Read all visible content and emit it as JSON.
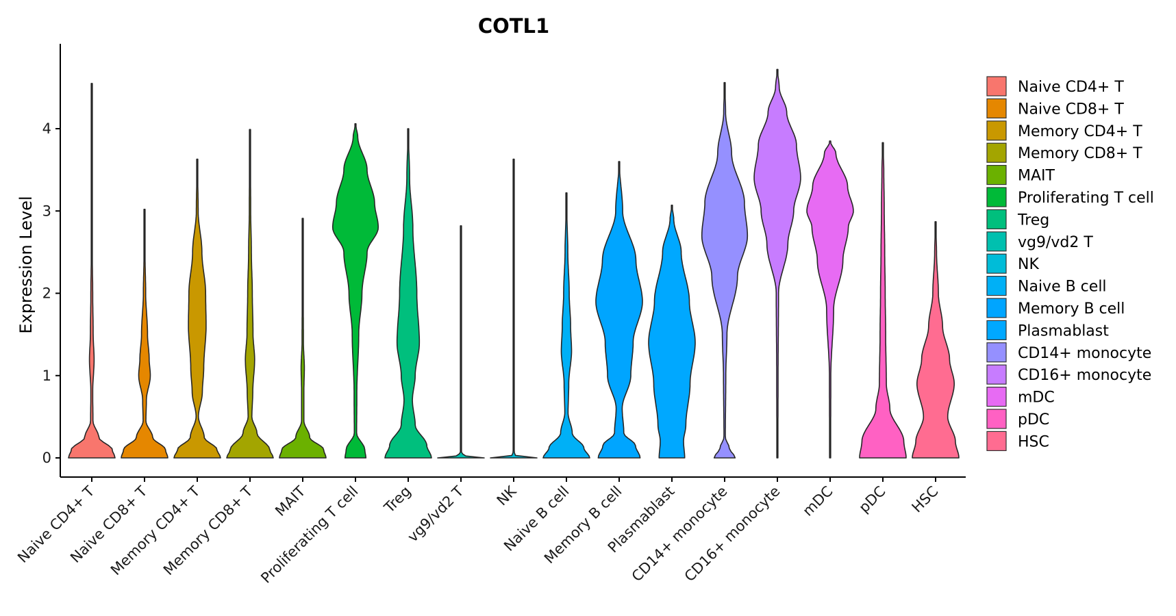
{
  "chart_data": {
    "type": "violin",
    "title": "COTL1",
    "xlabel": "",
    "ylabel": "Expression Level",
    "ylim": [
      -0.22,
      5.0
    ],
    "yticks": [
      0,
      1,
      2,
      3,
      4
    ],
    "legend_position": "right",
    "categories": [
      "Naive CD4+ T",
      "Naive CD8+ T",
      "Memory CD4+ T",
      "Memory CD8+ T",
      "MAIT",
      "Proliferating T cell",
      "Treg",
      "vg9/vd2 T",
      "NK",
      "Naive B cell",
      "Memory B cell",
      "Plasmablast",
      "CD14+ monocyte",
      "CD16+ monocyte",
      "mDC",
      "pDC",
      "HSC"
    ],
    "colors": [
      "#F8766D",
      "#E58700",
      "#C99800",
      "#A3A500",
      "#6BB100",
      "#00BA38",
      "#00BF7D",
      "#00C0AF",
      "#00BCD8",
      "#00B0F6",
      "#00A5FF",
      "#00A8FF",
      "#9590FF",
      "#C77CFF",
      "#E76BF3",
      "#FF61C3",
      "#FF6C91"
    ],
    "series": [
      {
        "name": "Naive CD4+ T",
        "max": 4.55,
        "profile": [
          [
            0,
            1.0
          ],
          [
            0.1,
            0.88
          ],
          [
            0.25,
            0.3
          ],
          [
            0.45,
            0.05
          ],
          [
            0.8,
            0.04
          ],
          [
            1.2,
            0.1
          ],
          [
            1.5,
            0.06
          ],
          [
            2.0,
            0.04
          ],
          [
            2.5,
            0.02
          ],
          [
            3.0,
            0.01
          ],
          [
            4.55,
            0.005
          ]
        ]
      },
      {
        "name": "Naive CD8+ T",
        "max": 3.02,
        "profile": [
          [
            0,
            1.0
          ],
          [
            0.1,
            0.9
          ],
          [
            0.25,
            0.35
          ],
          [
            0.45,
            0.06
          ],
          [
            0.7,
            0.08
          ],
          [
            1.0,
            0.25
          ],
          [
            1.2,
            0.2
          ],
          [
            1.5,
            0.13
          ],
          [
            2.0,
            0.05
          ],
          [
            2.5,
            0.02
          ],
          [
            3.02,
            0.005
          ]
        ]
      },
      {
        "name": "Memory CD4+ T",
        "max": 3.63,
        "profile": [
          [
            0,
            1.0
          ],
          [
            0.1,
            0.85
          ],
          [
            0.25,
            0.3
          ],
          [
            0.5,
            0.05
          ],
          [
            0.8,
            0.22
          ],
          [
            1.1,
            0.28
          ],
          [
            1.6,
            0.38
          ],
          [
            2.0,
            0.36
          ],
          [
            2.5,
            0.2
          ],
          [
            3.0,
            0.04
          ],
          [
            3.63,
            0.005
          ]
        ]
      },
      {
        "name": "Memory CD8+ T",
        "max": 3.99,
        "profile": [
          [
            0,
            1.0
          ],
          [
            0.1,
            0.85
          ],
          [
            0.3,
            0.3
          ],
          [
            0.5,
            0.08
          ],
          [
            0.8,
            0.12
          ],
          [
            1.2,
            0.2
          ],
          [
            1.5,
            0.13
          ],
          [
            2.0,
            0.1
          ],
          [
            2.5,
            0.06
          ],
          [
            3.0,
            0.03
          ],
          [
            3.99,
            0.005
          ]
        ]
      },
      {
        "name": "MAIT",
        "max": 2.91,
        "profile": [
          [
            0,
            1.0
          ],
          [
            0.1,
            0.9
          ],
          [
            0.25,
            0.3
          ],
          [
            0.45,
            0.05
          ],
          [
            0.8,
            0.05
          ],
          [
            1.1,
            0.07
          ],
          [
            1.4,
            0.03
          ],
          [
            2.0,
            0.02
          ],
          [
            2.91,
            0.005
          ]
        ]
      },
      {
        "name": "Proliferating T cell",
        "max": 4.06,
        "profile": [
          [
            0,
            0.45
          ],
          [
            0.1,
            0.4
          ],
          [
            0.3,
            0.05
          ],
          [
            0.8,
            0.06
          ],
          [
            1.5,
            0.14
          ],
          [
            2.0,
            0.28
          ],
          [
            2.5,
            0.5
          ],
          [
            2.8,
            0.98
          ],
          [
            3.1,
            0.82
          ],
          [
            3.5,
            0.5
          ],
          [
            3.9,
            0.1
          ],
          [
            4.06,
            0.005
          ]
        ]
      },
      {
        "name": "Treg",
        "max": 4.0,
        "profile": [
          [
            0,
            1.0
          ],
          [
            0.15,
            0.8
          ],
          [
            0.4,
            0.3
          ],
          [
            0.7,
            0.18
          ],
          [
            1.0,
            0.3
          ],
          [
            1.4,
            0.48
          ],
          [
            2.0,
            0.37
          ],
          [
            2.8,
            0.2
          ],
          [
            3.4,
            0.06
          ],
          [
            4.0,
            0.005
          ]
        ]
      },
      {
        "name": "vg9/vd2 T",
        "max": 2.82,
        "profile": [
          [
            0,
            1.0
          ],
          [
            0.03,
            0.1
          ],
          [
            0.08,
            0.01
          ],
          [
            2.82,
            0.005
          ]
        ]
      },
      {
        "name": "NK",
        "max": 3.63,
        "profile": [
          [
            0,
            1.0
          ],
          [
            0.03,
            0.08
          ],
          [
            0.08,
            0.01
          ],
          [
            3.63,
            0.005
          ]
        ]
      },
      {
        "name": "Naive B cell",
        "max": 3.22,
        "profile": [
          [
            0,
            1.0
          ],
          [
            0.12,
            0.75
          ],
          [
            0.3,
            0.25
          ],
          [
            0.55,
            0.07
          ],
          [
            0.9,
            0.1
          ],
          [
            1.3,
            0.22
          ],
          [
            1.6,
            0.18
          ],
          [
            2.0,
            0.12
          ],
          [
            2.5,
            0.06
          ],
          [
            3.0,
            0.02
          ],
          [
            3.22,
            0.005
          ]
        ]
      },
      {
        "name": "Memory B cell",
        "max": 3.6,
        "profile": [
          [
            0,
            0.9
          ],
          [
            0.15,
            0.7
          ],
          [
            0.3,
            0.2
          ],
          [
            0.6,
            0.13
          ],
          [
            1.0,
            0.5
          ],
          [
            1.4,
            0.6
          ],
          [
            1.9,
            1.0
          ],
          [
            2.4,
            0.72
          ],
          [
            3.0,
            0.15
          ],
          [
            3.6,
            0.005
          ]
        ]
      },
      {
        "name": "Plasmablast",
        "max": 3.07,
        "profile": [
          [
            0,
            0.55
          ],
          [
            0.2,
            0.5
          ],
          [
            0.4,
            0.6
          ],
          [
            0.9,
            0.78
          ],
          [
            1.4,
            1.0
          ],
          [
            1.9,
            0.75
          ],
          [
            2.5,
            0.4
          ],
          [
            2.9,
            0.08
          ],
          [
            3.07,
            0.005
          ]
        ]
      },
      {
        "name": "CD14+ monocyte",
        "max": 4.56,
        "profile": [
          [
            0,
            0.45
          ],
          [
            0.12,
            0.2
          ],
          [
            0.25,
            0.03
          ],
          [
            1.0,
            0.05
          ],
          [
            1.5,
            0.1
          ],
          [
            2.2,
            0.55
          ],
          [
            2.7,
            0.98
          ],
          [
            3.1,
            0.85
          ],
          [
            3.7,
            0.3
          ],
          [
            4.2,
            0.04
          ],
          [
            4.56,
            0.005
          ]
        ]
      },
      {
        "name": "CD16+ monocyte",
        "max": 4.72,
        "profile": [
          [
            0,
            0.02
          ],
          [
            1.0,
            0.03
          ],
          [
            2.0,
            0.05
          ],
          [
            2.6,
            0.45
          ],
          [
            3.0,
            0.7
          ],
          [
            3.4,
            1.0
          ],
          [
            3.8,
            0.82
          ],
          [
            4.2,
            0.4
          ],
          [
            4.5,
            0.08
          ],
          [
            4.72,
            0.005
          ]
        ]
      },
      {
        "name": "mDC",
        "max": 3.85,
        "profile": [
          [
            0,
            0.02
          ],
          [
            1.0,
            0.03
          ],
          [
            1.8,
            0.15
          ],
          [
            2.4,
            0.55
          ],
          [
            2.8,
            0.78
          ],
          [
            3.0,
            1.0
          ],
          [
            3.3,
            0.75
          ],
          [
            3.7,
            0.25
          ],
          [
            3.85,
            0.005
          ]
        ]
      },
      {
        "name": "pDC",
        "max": 3.83,
        "profile": [
          [
            0,
            1.0
          ],
          [
            0.2,
            0.9
          ],
          [
            0.6,
            0.3
          ],
          [
            0.9,
            0.15
          ],
          [
            1.5,
            0.12
          ],
          [
            2.0,
            0.1
          ],
          [
            2.5,
            0.08
          ],
          [
            3.0,
            0.06
          ],
          [
            3.5,
            0.04
          ],
          [
            3.83,
            0.005
          ]
        ]
      },
      {
        "name": "HSC",
        "max": 2.87,
        "profile": [
          [
            0,
            1.0
          ],
          [
            0.2,
            0.85
          ],
          [
            0.5,
            0.52
          ],
          [
            0.9,
            0.8
          ],
          [
            1.2,
            0.6
          ],
          [
            1.6,
            0.3
          ],
          [
            2.0,
            0.12
          ],
          [
            2.5,
            0.04
          ],
          [
            2.87,
            0.005
          ]
        ]
      }
    ]
  }
}
